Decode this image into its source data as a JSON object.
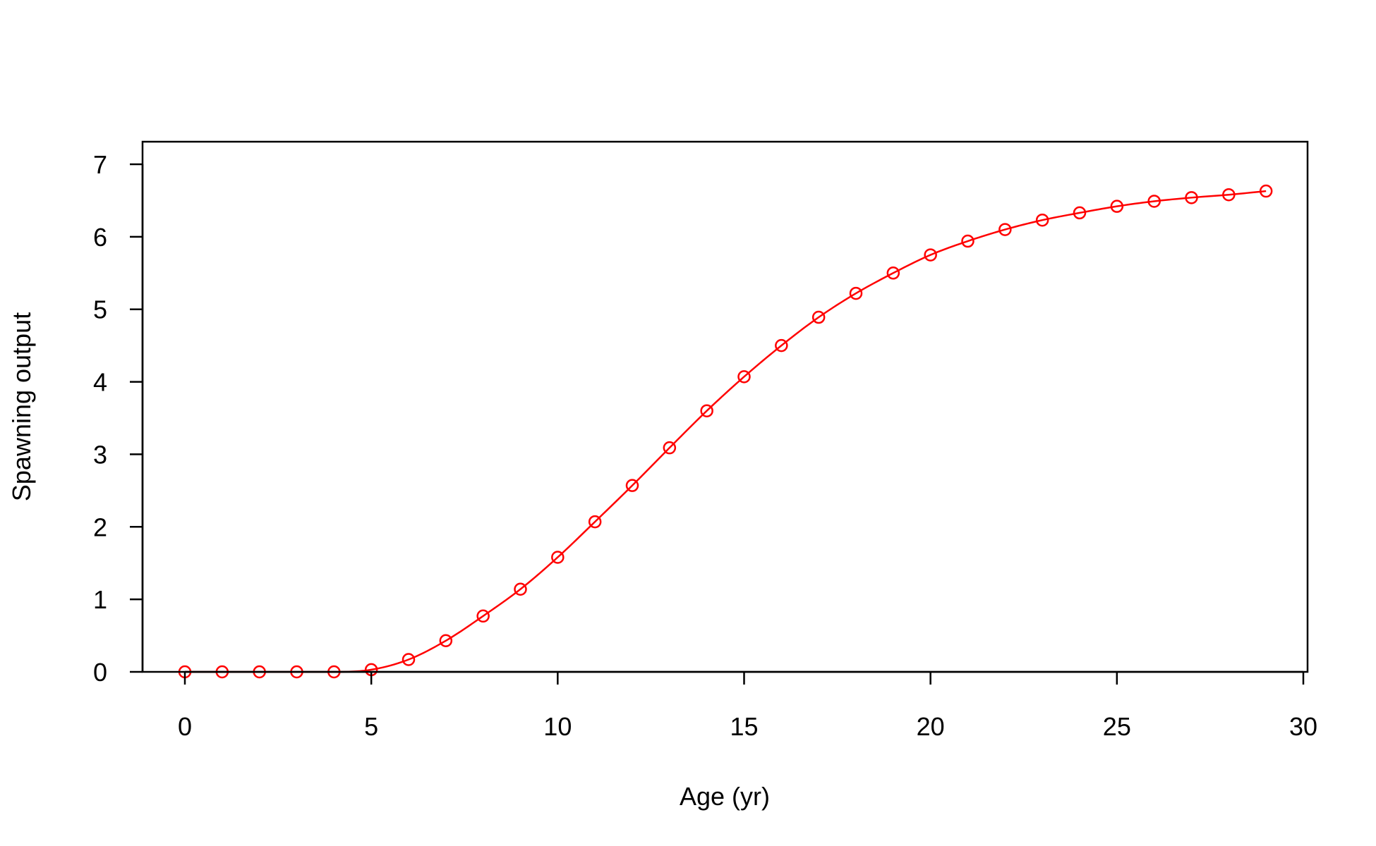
{
  "chart_data": {
    "type": "line",
    "title": "",
    "xlabel": "Age (yr)",
    "ylabel": "Spawning output",
    "xlim": [
      -1.2,
      30.1
    ],
    "ylim": [
      0,
      7.3
    ],
    "xticks": [
      0,
      5,
      10,
      15,
      20,
      25,
      30
    ],
    "yticks": [
      0,
      1,
      2,
      3,
      4,
      5,
      6,
      7
    ],
    "grid": false,
    "legend": "none",
    "color": "#ff0000",
    "series": [
      {
        "x": [
          0,
          1,
          2,
          3,
          4,
          5,
          6,
          7,
          8,
          9,
          10,
          11,
          12,
          13,
          14,
          15,
          16,
          17,
          18,
          19,
          20,
          21,
          22,
          23,
          24,
          25,
          26,
          27,
          28,
          29
        ],
        "y": [
          0,
          0,
          0,
          0,
          0,
          0.03,
          0.17,
          0.43,
          0.77,
          1.14,
          1.58,
          2.07,
          2.57,
          3.09,
          3.6,
          4.07,
          4.5,
          4.89,
          5.22,
          5.5,
          5.75,
          5.94,
          6.1,
          6.23,
          6.33,
          6.42,
          6.49,
          6.54,
          6.58,
          6.63
        ]
      }
    ]
  }
}
